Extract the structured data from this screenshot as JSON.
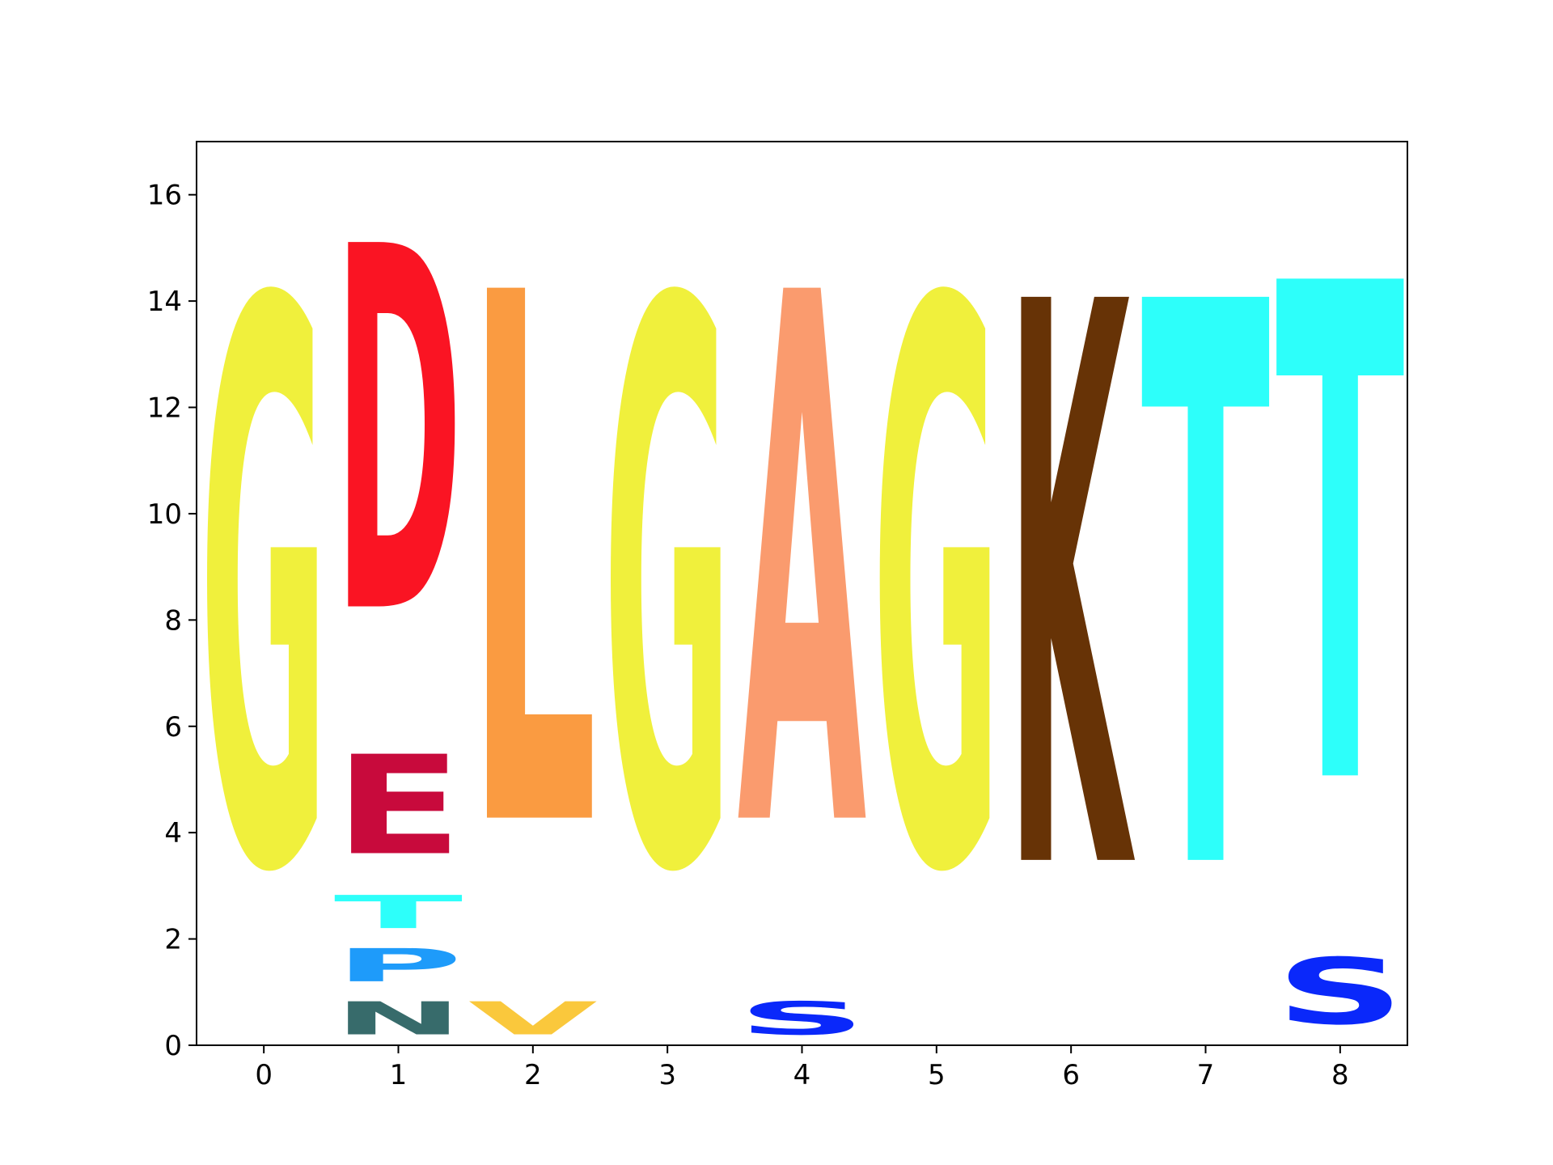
{
  "chart_data": {
    "type": "sequence-logo",
    "title": "",
    "xlabel": "",
    "ylabel": "",
    "xlim": [
      -0.5,
      8.5
    ],
    "ylim": [
      0,
      17
    ],
    "x_ticks": [
      "0",
      "1",
      "2",
      "3",
      "4",
      "5",
      "6",
      "7",
      "8"
    ],
    "y_ticks": [
      "0",
      "2",
      "4",
      "6",
      "8",
      "10",
      "12",
      "14",
      "16"
    ],
    "grid": false,
    "legend": "none",
    "positions": [
      {
        "position": 0,
        "letters": [
          {
            "letter": "G",
            "height": 17.0,
            "color": "#f0f03c"
          }
        ]
      },
      {
        "position": 1,
        "letters": [
          {
            "letter": "N",
            "height": 1.0,
            "color": "#376b6b"
          },
          {
            "letter": "P",
            "height": 1.0,
            "color": "#1e9bfa"
          },
          {
            "letter": "T",
            "height": 1.0,
            "color": "#2dfffa"
          },
          {
            "letter": "E",
            "height": 3.0,
            "color": "#c80a3c"
          },
          {
            "letter": "D",
            "height": 11.0,
            "color": "#fa1423"
          }
        ]
      },
      {
        "position": 2,
        "letters": [
          {
            "letter": "V",
            "height": 1.0,
            "color": "#fac83c"
          },
          {
            "letter": "L",
            "height": 16.0,
            "color": "#fa9b41"
          }
        ]
      },
      {
        "position": 3,
        "letters": [
          {
            "letter": "G",
            "height": 17.0,
            "color": "#f0f03c"
          }
        ]
      },
      {
        "position": 4,
        "letters": [
          {
            "letter": "S",
            "height": 1.0,
            "color": "#0a28fa"
          },
          {
            "letter": "A",
            "height": 16.0,
            "color": "#fa9b6e"
          }
        ]
      },
      {
        "position": 5,
        "letters": [
          {
            "letter": "G",
            "height": 17.0,
            "color": "#f0f03c"
          }
        ]
      },
      {
        "position": 6,
        "letters": [
          {
            "letter": "K",
            "height": 17.0,
            "color": "#673306"
          }
        ]
      },
      {
        "position": 7,
        "letters": [
          {
            "letter": "T",
            "height": 17.0,
            "color": "#2dfffa"
          }
        ]
      },
      {
        "position": 8,
        "letters": [
          {
            "letter": "S",
            "height": 2.0,
            "color": "#0a28fa"
          },
          {
            "letter": "T",
            "height": 15.0,
            "color": "#2dfffa"
          }
        ]
      }
    ]
  }
}
